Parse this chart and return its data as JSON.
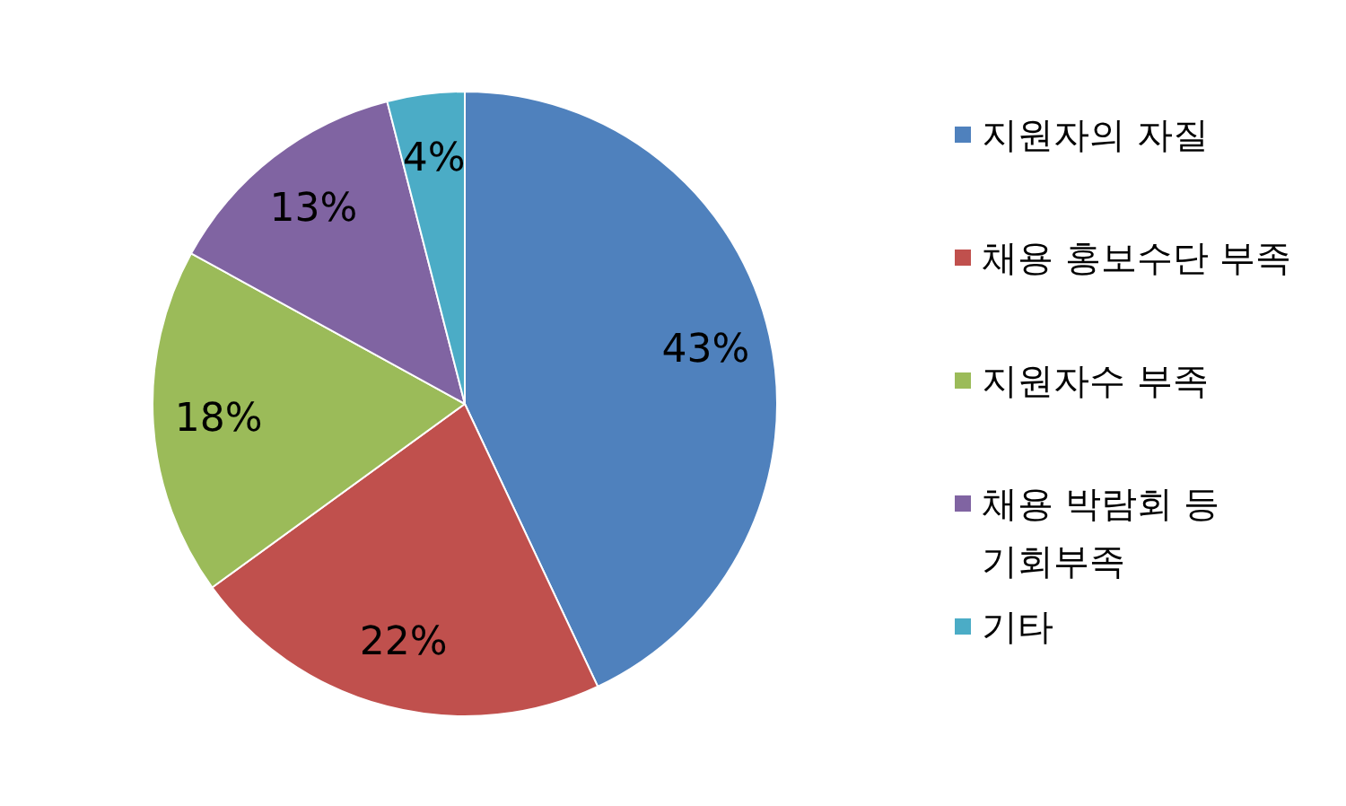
{
  "chart_data": {
    "type": "pie",
    "categories": [
      "지원자의 자질",
      "채용 홍보수단 부족",
      "지원자수 부족",
      "채용 박람회 등 기회부족",
      "기타"
    ],
    "values": [
      43,
      22,
      18,
      13,
      4
    ],
    "colors": [
      "#4f81bd",
      "#c0504d",
      "#9bbb59",
      "#8064a2",
      "#4bacc6"
    ],
    "value_labels": [
      "43%",
      "22%",
      "18%",
      "13%",
      "4%"
    ],
    "legend": "right"
  }
}
